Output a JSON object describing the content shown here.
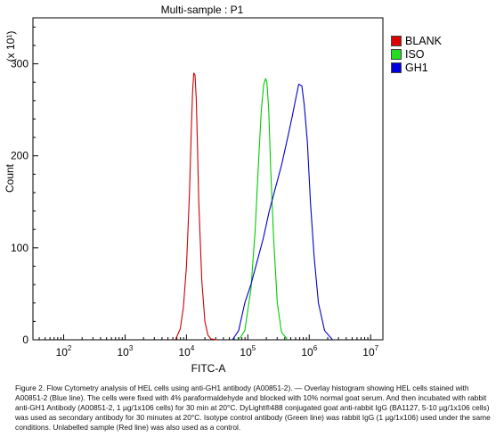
{
  "chart_data": {
    "type": "line",
    "title": "Multi-sample : P1",
    "xlabel": "FITC-A",
    "ylabel": "Count",
    "y_multiplier": "(x 10¹)",
    "x_scale": "log",
    "xlim_exponent": [
      1.5,
      7.2
    ],
    "ylim": [
      0,
      350
    ],
    "x_ticks": [
      {
        "base": "10",
        "exp": "2",
        "value": 2
      },
      {
        "base": "10",
        "exp": "3",
        "value": 3
      },
      {
        "base": "10",
        "exp": "4",
        "value": 4
      },
      {
        "base": "10",
        "exp": "5",
        "value": 5
      },
      {
        "base": "10",
        "exp": "6",
        "value": 6
      },
      {
        "base": "10",
        "exp": "7",
        "value": 7
      }
    ],
    "y_ticks": [
      {
        "label": "0",
        "value": 0
      },
      {
        "label": "100",
        "value": 100
      },
      {
        "label": "200",
        "value": 200
      },
      {
        "label": "300",
        "value": 300
      }
    ],
    "legend_position": "top-right",
    "series": [
      {
        "name": "BLANK",
        "color": "#cc0000",
        "log_x": [
          3.82,
          3.9,
          3.95,
          4.0,
          4.05,
          4.08,
          4.1,
          4.12,
          4.14,
          4.16,
          4.18,
          4.2,
          4.25,
          4.3,
          4.35,
          4.4,
          4.5
        ],
        "y": [
          0,
          12,
          35,
          80,
          160,
          230,
          270,
          290,
          288,
          262,
          210,
          150,
          65,
          20,
          5,
          1,
          0
        ]
      },
      {
        "name": "ISO",
        "color": "#00cc00",
        "log_x": [
          4.85,
          4.95,
          5.05,
          5.12,
          5.18,
          5.22,
          5.26,
          5.29,
          5.31,
          5.34,
          5.37,
          5.42,
          5.48,
          5.55,
          5.65
        ],
        "y": [
          0,
          10,
          55,
          120,
          200,
          250,
          278,
          284,
          280,
          250,
          190,
          110,
          40,
          8,
          0
        ]
      },
      {
        "name": "GH1",
        "color": "#0000cc",
        "log_x": [
          4.75,
          4.85,
          4.95,
          5.05,
          5.15,
          5.25,
          5.35,
          5.45,
          5.55,
          5.65,
          5.72,
          5.78,
          5.83,
          5.88,
          5.92,
          5.97,
          6.02,
          6.08,
          6.15,
          6.25,
          6.38
        ],
        "y": [
          0,
          10,
          40,
          60,
          85,
          110,
          140,
          165,
          190,
          220,
          242,
          262,
          278,
          276,
          255,
          215,
          150,
          90,
          40,
          10,
          0
        ]
      }
    ]
  },
  "caption": "Figure 2. Flow Cytometry analysis of HEL cells using anti-GH1 antibody (A00851-2). — Overlay histogram showing HEL cells stained with A00851-2 (Blue line). The cells were fixed with 4% paraformaldehyde and blocked with 10% normal goat serum. And then incubated with rabbit anti-GH1 Antibody (A00851-2, 1 µg/1x106 cells) for 30 min at 20°C. DyLight®488 conjugated goat anti-rabbit IgG (BA1127, 5-10 µg/1x106 cells) was used as secondary antibody for 30 minutes at 20°C. Isotype control antibody (Green line) was rabbit IgG (1 µg/1x106) used under the same conditions. Unlabelled sample (Red line) was also used as a control."
}
